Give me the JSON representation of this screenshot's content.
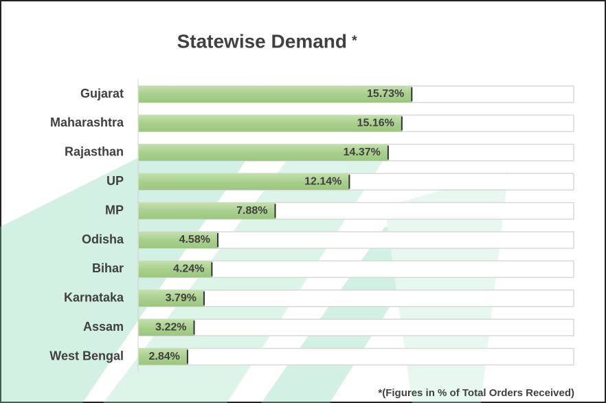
{
  "chart_data": {
    "type": "bar",
    "orientation": "horizontal",
    "title": "Statewise Demand",
    "title_mark": "*",
    "footnote": "*(Figures in % of Total Orders Received)",
    "categories": [
      "Gujarat",
      "Maharashtra",
      "Rajasthan",
      "UP",
      "MP",
      "Odisha",
      "Bihar",
      "Karnataka",
      "Assam",
      "West Bengal"
    ],
    "values": [
      15.73,
      15.16,
      14.37,
      12.14,
      7.88,
      4.58,
      4.24,
      3.79,
      3.22,
      2.84
    ],
    "value_labels": [
      "15.73%",
      "15.16%",
      "14.37%",
      "12.14%",
      "7.88%",
      "4.58%",
      "4.24%",
      "3.79%",
      "3.22%",
      "2.84%"
    ],
    "color": "#a9d08e",
    "xlim": [
      0,
      25
    ]
  }
}
